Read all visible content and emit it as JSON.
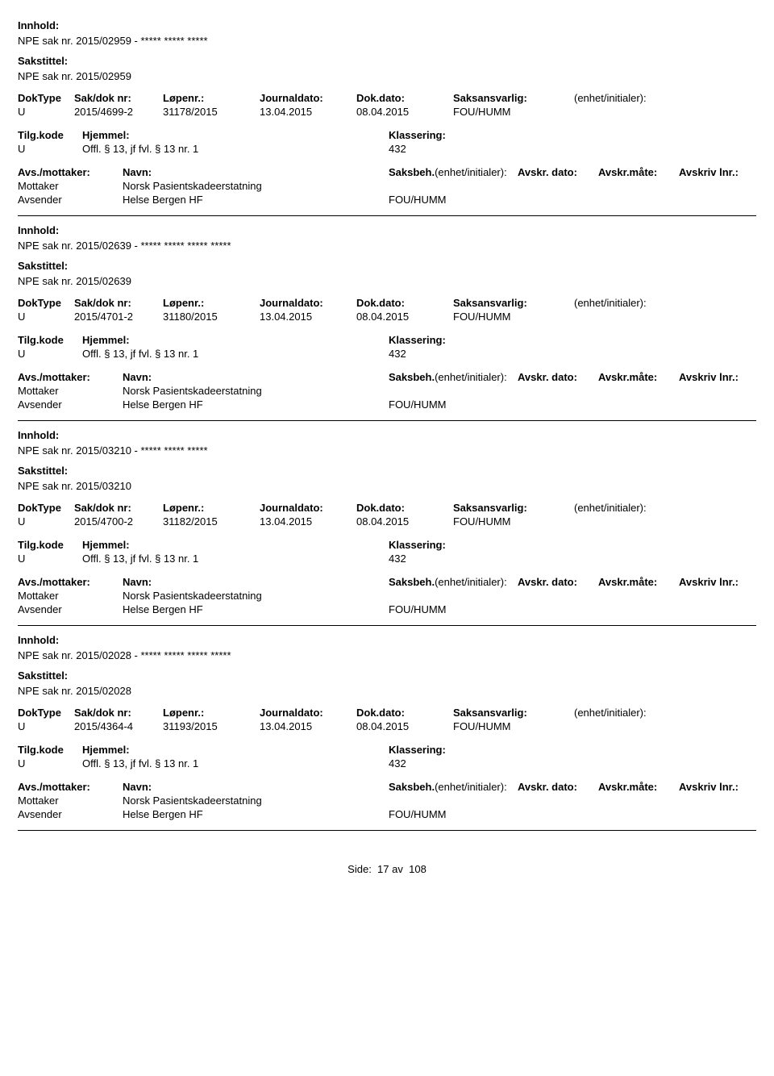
{
  "labels": {
    "innhold": "Innhold:",
    "sakstittel": "Sakstittel:",
    "doktype": "DokType",
    "sakdoknr": "Sak/dok nr:",
    "lopenr": "Løpenr.:",
    "journaldato": "Journaldato:",
    "dokdato": "Dok.dato:",
    "saksansvarlig": "Saksansvarlig:",
    "enhet_initialer": "(enhet/initialer):",
    "tilgkode": "Tilg.kode",
    "hjemmel": "Hjemmel:",
    "klassering": "Klassering:",
    "avs_mottaker": "Avs./mottaker:",
    "navn": "Navn:",
    "saksbeh": "Saksbeh.",
    "saksbeh_enhet": "(enhet/initialer):",
    "avskr_dato": "Avskr. dato:",
    "avskr_mate": "Avskr.måte:",
    "avskriv_lnr": "Avskriv lnr.:",
    "mottaker": "Mottaker",
    "avsender": "Avsender"
  },
  "entries": [
    {
      "innhold": "NPE sak nr. 2015/02959 - ***** ***** *****",
      "sakstittel": "NPE sak nr. 2015/02959",
      "doktype": "U",
      "sakdoknr": "2015/4699-2",
      "lopenr": "31178/2015",
      "journaldato": "13.04.2015",
      "dokdato": "08.04.2015",
      "saksansvarlig": "FOU/HUMM",
      "tilgkode": "U",
      "hjemmel": "Offl. § 13, jf fvl. § 13 nr. 1",
      "klassering": "432",
      "mottaker_navn": "Norsk Pasientskadeerstatning",
      "avsender_navn": "Helse Bergen HF",
      "avsender_enhet": "FOU/HUMM"
    },
    {
      "innhold": "NPE sak nr. 2015/02639 - ***** ***** ***** *****",
      "sakstittel": "NPE sak nr. 2015/02639",
      "doktype": "U",
      "sakdoknr": "2015/4701-2",
      "lopenr": "31180/2015",
      "journaldato": "13.04.2015",
      "dokdato": "08.04.2015",
      "saksansvarlig": "FOU/HUMM",
      "tilgkode": "U",
      "hjemmel": "Offl. § 13, jf fvl. § 13 nr. 1",
      "klassering": "432",
      "mottaker_navn": "Norsk Pasientskadeerstatning",
      "avsender_navn": "Helse Bergen HF",
      "avsender_enhet": "FOU/HUMM"
    },
    {
      "innhold": "NPE sak nr. 2015/03210 - ***** ***** *****",
      "sakstittel": "NPE sak nr. 2015/03210",
      "doktype": "U",
      "sakdoknr": "2015/4700-2",
      "lopenr": "31182/2015",
      "journaldato": "13.04.2015",
      "dokdato": "08.04.2015",
      "saksansvarlig": "FOU/HUMM",
      "tilgkode": "U",
      "hjemmel": "Offl. § 13, jf fvl. § 13 nr. 1",
      "klassering": "432",
      "mottaker_navn": "Norsk Pasientskadeerstatning",
      "avsender_navn": "Helse Bergen HF",
      "avsender_enhet": "FOU/HUMM"
    },
    {
      "innhold": "NPE sak nr. 2015/02028 - ***** ***** ***** *****",
      "sakstittel": "NPE sak nr. 2015/02028",
      "doktype": "U",
      "sakdoknr": "2015/4364-4",
      "lopenr": "31193/2015",
      "journaldato": "13.04.2015",
      "dokdato": "08.04.2015",
      "saksansvarlig": "FOU/HUMM",
      "tilgkode": "U",
      "hjemmel": "Offl. § 13, jf fvl. § 13 nr. 1",
      "klassering": "432",
      "mottaker_navn": "Norsk Pasientskadeerstatning",
      "avsender_navn": "Helse Bergen HF",
      "avsender_enhet": "FOU/HUMM"
    }
  ],
  "footer": {
    "label": "Side:",
    "page": "17",
    "sep": "av",
    "total": "108"
  }
}
